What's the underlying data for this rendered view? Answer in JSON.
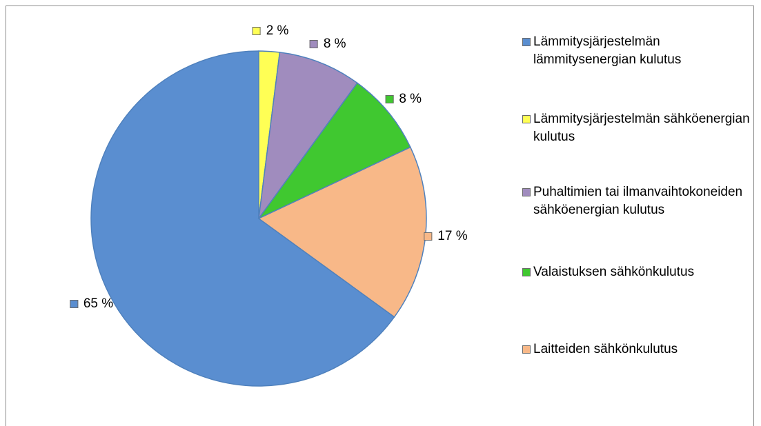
{
  "chart_data": {
    "type": "pie",
    "categories": [
      "Lämmitysjärjestelmän lämmitysenergian kulutus",
      "Lämmitysjärjestelmän sähköenergian kulutus",
      "Puhaltimien tai ilmanvaihtokoneiden sähköenergian kulutus",
      "Valaistuksen sähkönkulutus",
      "Laitteiden sähkönkulutus"
    ],
    "values": [
      65,
      2,
      8,
      8,
      17
    ],
    "value_labels": [
      "65 %",
      "2 %",
      "8 %",
      "8 %",
      "17 %"
    ],
    "colors": [
      "#5a8ed0",
      "#ffff55",
      "#a08cbe",
      "#40c830",
      "#f8b888"
    ],
    "legend": "right"
  }
}
